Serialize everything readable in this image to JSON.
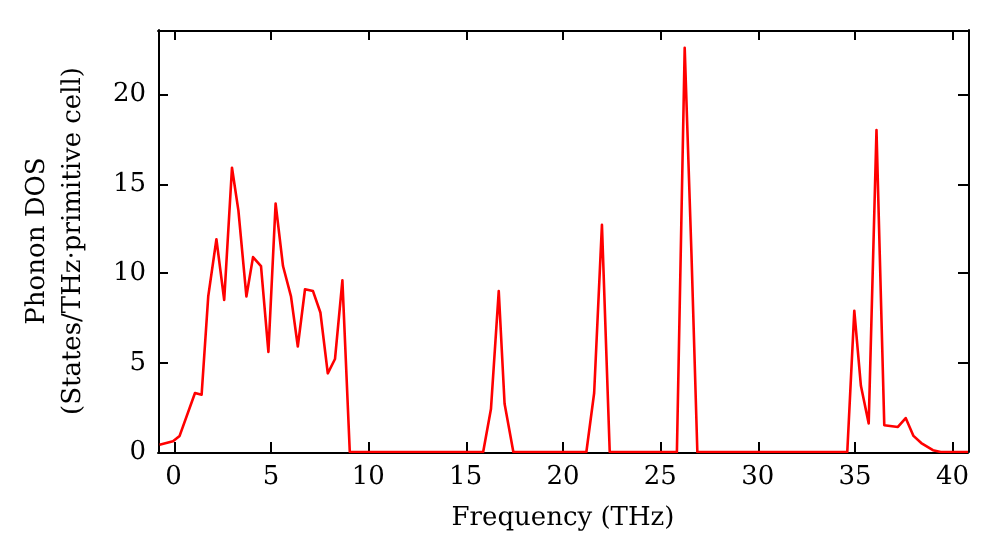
{
  "chart_data": {
    "type": "line",
    "xlabel": "Frequency (THz)",
    "ylabel": "Phonon DOS\n(States/THz·primitive cell)",
    "x": [
      -0.72,
      -0.03,
      0.31,
      1.1,
      1.44,
      1.78,
      2.2,
      2.6,
      3.0,
      3.33,
      3.74,
      4.08,
      4.49,
      4.87,
      5.24,
      5.62,
      6.03,
      6.38,
      6.75,
      7.16,
      7.54,
      7.92,
      8.29,
      8.67,
      9.05,
      15.9,
      16.3,
      16.7,
      17.0,
      17.45,
      21.2,
      21.6,
      22.0,
      22.4,
      25.85,
      26.25,
      26.6,
      26.9,
      34.6,
      34.96,
      35.3,
      35.7,
      36.1,
      36.5,
      37.2,
      37.6,
      38.0,
      38.4,
      39.0,
      39.4,
      40.8
    ],
    "series": [
      {
        "color": "#ff0000",
        "values": [
          0.4,
          0.6,
          0.9,
          3.3,
          3.2,
          8.7,
          11.9,
          8.5,
          15.9,
          13.5,
          8.7,
          10.9,
          10.4,
          5.6,
          13.9,
          10.4,
          8.7,
          5.9,
          9.1,
          9.0,
          7.8,
          4.4,
          5.2,
          9.6,
          0,
          0,
          2.4,
          9.0,
          2.7,
          0,
          0,
          3.3,
          12.7,
          0,
          0,
          22.6,
          11,
          0,
          0,
          7.9,
          3.7,
          1.6,
          18.0,
          1.5,
          1.4,
          1.9,
          0.9,
          0.5,
          0.1,
          0,
          0
        ]
      }
    ],
    "xlim": [
      -0.8,
      40.8
    ],
    "ylim": [
      0,
      23.6
    ],
    "xticks": [
      0,
      5,
      10,
      15,
      20,
      25,
      30,
      35,
      40
    ],
    "yticks": [
      0,
      5,
      10,
      15,
      20
    ],
    "grid": false,
    "marker": "none",
    "line_style": "solid"
  }
}
